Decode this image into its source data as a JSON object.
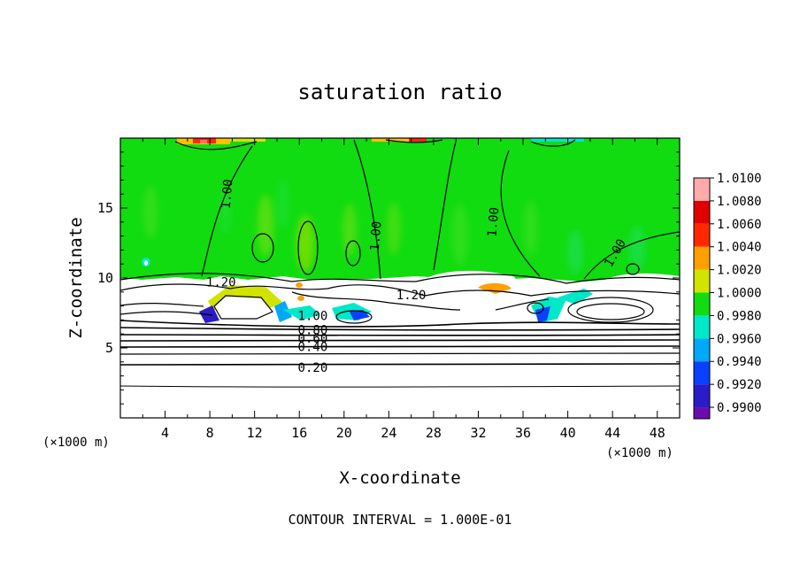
{
  "chart_data": {
    "type": "heatmap",
    "title": "saturation ratio",
    "xlabel": "X-coordinate",
    "ylabel": "Z-coordinate",
    "x_unit": "(×1000 m)",
    "z_unit": "(×1000 m)",
    "xlim": [
      0,
      50
    ],
    "ylim": [
      0,
      20
    ],
    "xticks": [
      4,
      8,
      12,
      16,
      20,
      24,
      28,
      32,
      36,
      40,
      44,
      48
    ],
    "yticks": [
      5,
      10,
      15
    ],
    "colorbar": {
      "levels": [
        0.99,
        0.992,
        0.994,
        0.996,
        0.998,
        1.0,
        1.002,
        1.004,
        1.006,
        1.008,
        1.01
      ],
      "labels": [
        "0.9900",
        "0.9920",
        "0.9940",
        "0.9960",
        "0.9980",
        "1.0000",
        "1.0020",
        "1.0040",
        "1.0060",
        "1.0080",
        "1.0100"
      ],
      "colors": [
        "#6a0dad",
        "#2a1cc8",
        "#0a40ff",
        "#00a8f8",
        "#00e8c8",
        "#10dc10",
        "#d0e400",
        "#ffa000",
        "#ff2800",
        "#e00000",
        "#ffaaaa"
      ]
    },
    "contour_interval_text": "CONTOUR INTERVAL = 1.000E-01",
    "contour_labels": [
      {
        "text": "1.00",
        "x": 9.5,
        "z": 16.0
      },
      {
        "text": "1.00",
        "x": 22.8,
        "z": 13.0
      },
      {
        "text": "1.00",
        "x": 33.3,
        "z": 14.0
      },
      {
        "text": "1.00",
        "x": 44.2,
        "z": 11.8
      },
      {
        "text": "1.20",
        "x": 9.0,
        "z": 9.7
      },
      {
        "text": "1.20",
        "x": 26.0,
        "z": 8.8
      },
      {
        "text": "1.00",
        "x": 17.2,
        "z": 7.3
      },
      {
        "text": "0.80",
        "x": 17.2,
        "z": 6.3
      },
      {
        "text": "0.60",
        "x": 17.2,
        "z": 5.7
      },
      {
        "text": "0.40",
        "x": 17.2,
        "z": 5.1
      },
      {
        "text": "0.20",
        "x": 17.2,
        "z": 3.6
      }
    ]
  }
}
